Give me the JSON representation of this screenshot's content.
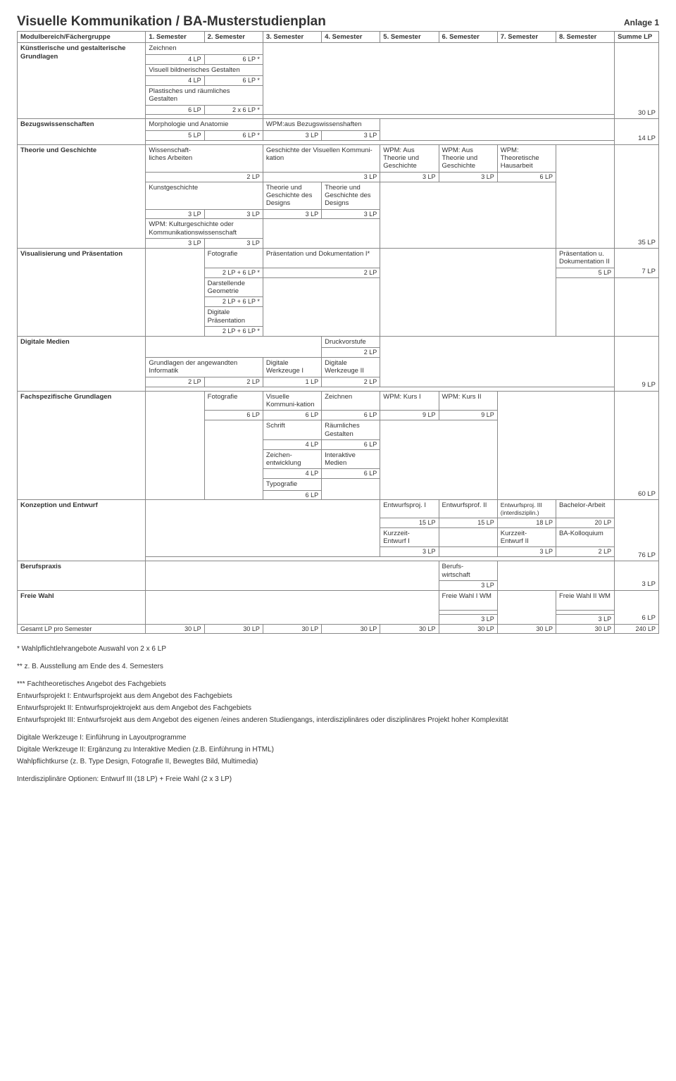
{
  "header": {
    "title": "Visuelle Kommunikation  /  BA-Musterstudienplan",
    "anlage": "Anlage 1"
  },
  "columns": {
    "group": "Modulbereich/Fächergruppe",
    "s1": "1. Semester",
    "s2": "2. Semester",
    "s3": "3. Semester",
    "s4": "4. Semester",
    "s5": "5. Semester",
    "s6": "6. Semester",
    "s7": "7. Semester",
    "s8": "8. Semester",
    "sum": "Summe LP"
  },
  "groups": {
    "kg": "Künstlerische und gestalterische Grundlagen",
    "bw": "Bezugswissenschaften",
    "tg": "Theorie und Geschichte",
    "vp": "Visualisierung und Präsentation",
    "dm": "Digitale Medien",
    "fg": "Fachspezifische Grundlagen",
    "ke": "Konzeption und Entwurf",
    "bp": "Berufspraxis",
    "fw": "Freie Wahl",
    "total": "Gesamt LP pro Semester"
  },
  "cells": {
    "zeichnen": "Zeichnen",
    "lp4": "4 LP",
    "lp6s": "6 LP *",
    "lp2x6s": "2 x 6 LP *",
    "vbg": "Visuell bildnerisches Gestalten",
    "prg": "Plastisches und räumliches Gestalten",
    "lp6": "6 LP",
    "morph": "Morphologie und Anatomie",
    "wpmBw": "WPM:aus Bezugswissenshaften",
    "lp5": "5 LP",
    "lp3": "3 LP",
    "wissArb": "Wissenschaft-\nliches Arbeiten",
    "gvk": "Geschichte der Visuellen Kommuni-kation",
    "wpmTg": "WPM: Aus Theorie und Geschichte",
    "wpmTh": "WPM: Theoretische Hausarbeit",
    "lp2": "2 LP",
    "kunstg": "Kunstgeschichte",
    "tgd": "Theorie und Geschichte des Designs",
    "wpmKult": "WPM: Kulturgeschichte oder Kommunikationswissenschaft",
    "foto": "Fotografie",
    "pd1": "Präsentation und Dokumentation I*",
    "pd2": "Präsentation u. Dokumentation II",
    "lp2p6s": "2 LP + 6 LP *",
    "dg": "Darstellende Geometrie",
    "dp": "Digitale Präsentation",
    "dv": "Druckvorstufe",
    "gai": "Grundlagen der angewandten Informatik",
    "dw1": "Digitale Werkzeuge I",
    "dw2": "Digitale Werkzeuge II",
    "lp1": "1 LP",
    "vk": "Visuelle Kommuni-kation",
    "zeich2": "Zeichnen",
    "wpmK1": "WPM: Kurs I",
    "wpmK2": "WPM: Kurs II",
    "lp9": "9 LP",
    "schrift": "Schrift",
    "rg": "Räumliches Gestalten",
    "ze": "Zeichen-\nentwicklung",
    "im": "Interaktive Medien",
    "typo": "Typografie",
    "ep1": "Entwurfsproj. I",
    "ep2": "Entwurfsprof. II",
    "ep3": "Entwurfsproj. III (interdisziplin.)",
    "ba": "Bachelor-Arbeit",
    "lp15": "15 LP",
    "lp18": "18 LP",
    "lp20": "20 LP",
    "kz1": "Kurzzeit-\nEntwurf I",
    "kz2": "Kurzzeit-\nEntwurf II",
    "bak": "BA-Kolloquium",
    "bwirt": "Berufs-\nwirtschaft",
    "fw1": "Freie Wahl I WM",
    "fw2": "Freie Wahl II WM",
    "lp30": "30 LP",
    "lp240": "240 LP",
    "lp35": "35 LP",
    "lp7": "7 LP",
    "lp14": "14 LP",
    "lp60": "60 LP",
    "lp76": "76 LP",
    "lp30b": "30 LP"
  },
  "footnotes": {
    "f1": "* Wahlpflichtlehrangebote Auswahl von 2 x 6 LP",
    "f2": "** z. B. Ausstellung am Ende des 4. Semesters",
    "f3": "*** Fachtheoretisches Angebot des Fachgebiets",
    "f4": "Entwurfsprojekt I:   Entwurfsprojekt aus dem Angebot des Fachgebiets",
    "f5": "Entwurfsprojekt II:  Entwurfsprojektrojekt aus dem Angebot des Fachgebiets",
    "f6": "Entwurfsprojekt III: Entwurfsrojekt aus dem Angebot des eigenen /eines anderen Studiengangs, interdisziplinäres oder disziplinäres Projekt hoher Komplexität",
    "f7": "Digitale Werkzeuge I:  Einführung in Layoutprogramme",
    "f8": "Digitale Werkzeuge II: Ergänzung zu Interaktive Medien (z.B. Einführung in HTML)",
    "f9": "Wahlpflichtkurse (z. B. Type Design, Fotografie II, Bewegtes Bild, Multimedia)",
    "f10": "Interdisziplinäre Optionen: Entwurf III (18 LP) + Freie Wahl (2 x 3 LP)"
  }
}
